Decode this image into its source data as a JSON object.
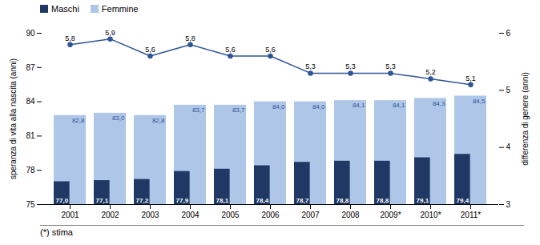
{
  "chart_data": {
    "type": "bar",
    "categories": [
      "2001",
      "2002",
      "2003",
      "2004",
      "2005",
      "2006",
      "2007",
      "2008",
      "2009*",
      "2010*",
      "2011*"
    ],
    "ylabel": "speranza di vita alla nascita (anni)",
    "y2label": "differenza di genere (anni)",
    "ylim": [
      75,
      90
    ],
    "yticks": [
      75,
      78,
      81,
      84,
      87,
      90
    ],
    "y2lim": [
      3,
      6
    ],
    "y2ticks": [
      3,
      4,
      5,
      6
    ],
    "legend": "upper left",
    "data_labels": true,
    "footnote": "(*) stima",
    "series": [
      {
        "name": "Maschi",
        "color": "#1f3864",
        "values": [
          77.0,
          77.1,
          77.2,
          77.9,
          78.1,
          78.4,
          78.7,
          78.8,
          78.8,
          79.1,
          79.4
        ],
        "value_labels": [
          "77,0",
          "77,1",
          "77,2",
          "77,9",
          "78,1",
          "78,4",
          "78,7",
          "78,8",
          "78,8",
          "79,1",
          "79,4"
        ]
      },
      {
        "name": "Femmine",
        "color": "#aec6e8",
        "values": [
          82.8,
          83.0,
          82.8,
          83.7,
          83.7,
          84.0,
          84.0,
          84.1,
          84.1,
          84.3,
          84.5
        ],
        "value_labels": [
          "82,8",
          "83,0",
          "82,8",
          "83,7",
          "83,7",
          "84,0",
          "84,0",
          "84,1",
          "84,1",
          "84,3",
          "84,5"
        ]
      },
      {
        "type": "line",
        "axis": "y2",
        "color": "#2e5596",
        "marker": "circle",
        "values": [
          5.8,
          5.9,
          5.6,
          5.8,
          5.6,
          5.6,
          5.3,
          5.3,
          5.3,
          5.2,
          5.1
        ],
        "value_labels": [
          "5,8",
          "5,9",
          "5,6",
          "5,8",
          "5,6",
          "5,6",
          "5,3",
          "5,3",
          "5,3",
          "5,2",
          "5,1"
        ]
      }
    ]
  }
}
